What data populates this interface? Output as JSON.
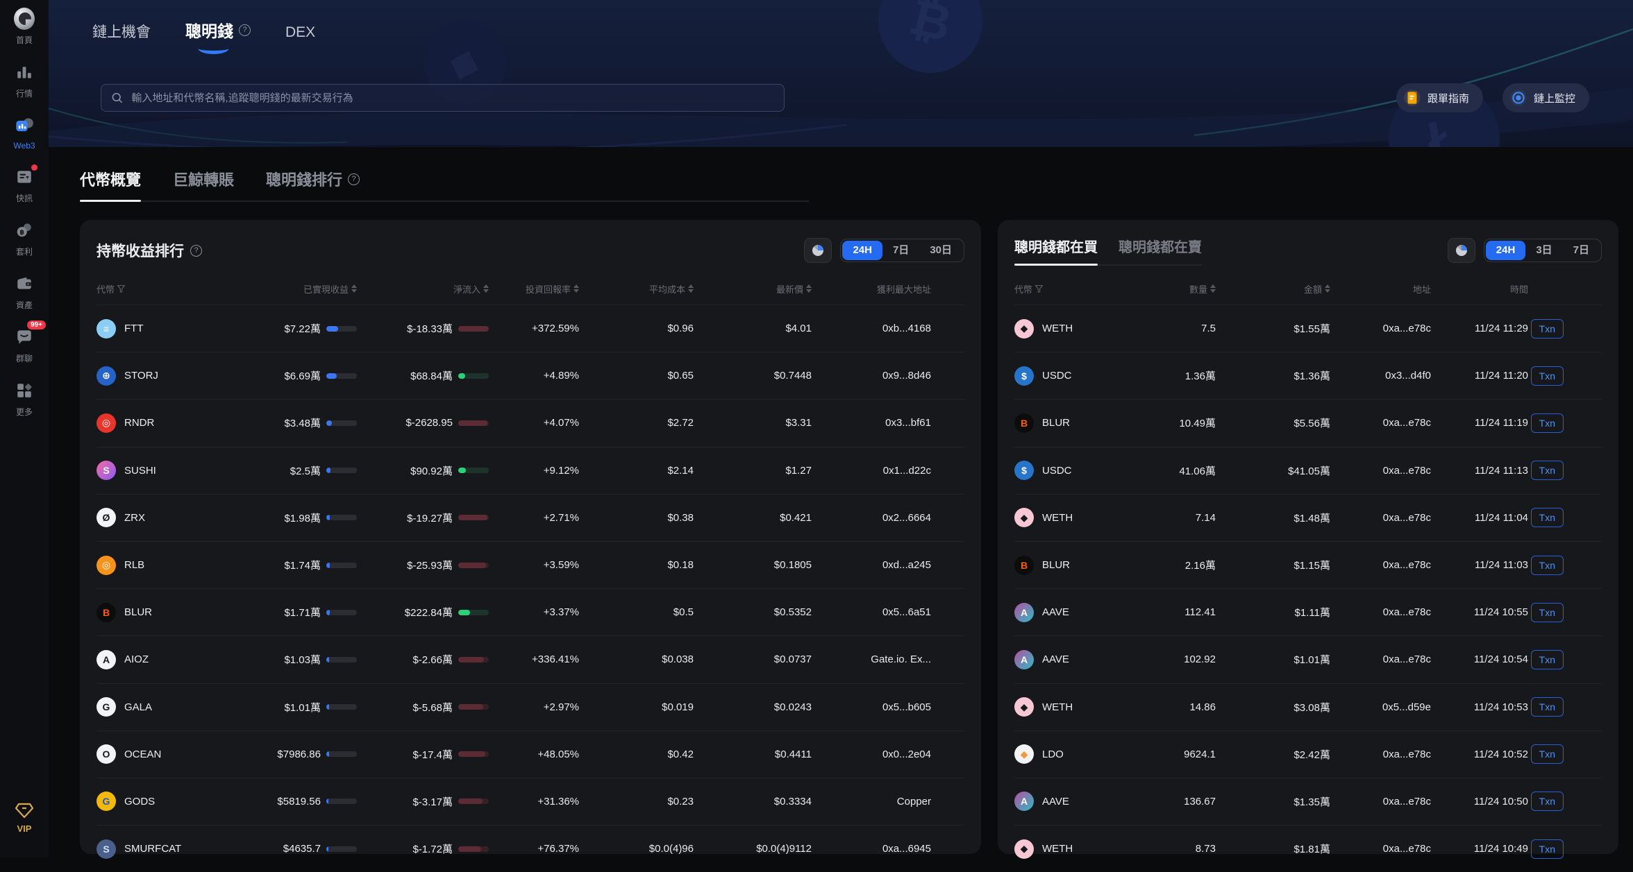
{
  "sidebar": {
    "items": [
      {
        "label": "首頁",
        "icon": "gate-logo"
      },
      {
        "label": "行情",
        "icon": "market-bars"
      },
      {
        "label": "Web3",
        "icon": "web3",
        "active": true
      },
      {
        "label": "快訊",
        "icon": "news",
        "badge_dot": true
      },
      {
        "label": "套利",
        "icon": "arbitrage"
      },
      {
        "label": "資產",
        "icon": "wallet"
      },
      {
        "label": "群聊",
        "icon": "chat",
        "badge": "99+"
      },
      {
        "label": "更多",
        "icon": "more-grid"
      }
    ],
    "vip_label": "VIP"
  },
  "topnav": {
    "tabs": [
      {
        "label": "鏈上機會",
        "active": false
      },
      {
        "label": "聰明錢",
        "active": true,
        "help": true
      },
      {
        "label": "DEX",
        "active": false
      }
    ]
  },
  "search": {
    "placeholder": "輸入地址和代幣名稱,追蹤聰明錢的最新交易行為"
  },
  "header_actions": [
    {
      "label": "跟單指南",
      "icon": "guide-doc"
    },
    {
      "label": "鏈上監控",
      "icon": "chain-monitor"
    }
  ],
  "section_tabs": [
    {
      "label": "代幣概覽",
      "active": true
    },
    {
      "label": "巨鯨轉賬",
      "active": false
    },
    {
      "label": "聰明錢排行",
      "active": false,
      "help": true
    }
  ],
  "left_panel": {
    "title": "持幣收益排行",
    "filters": [
      "24H",
      "7日",
      "30日"
    ],
    "active_filter": "24H",
    "columns": [
      {
        "label": "代幣",
        "filter": true
      },
      {
        "label": "已實現收益",
        "sort": true
      },
      {
        "label": "淨流入",
        "sort": true
      },
      {
        "label": "投資回報率",
        "sort": true
      },
      {
        "label": "平均成本",
        "sort": true
      },
      {
        "label": "最新價",
        "sort": true
      },
      {
        "label": "獲利最大地址"
      }
    ],
    "rows": [
      {
        "symbol": "FTT",
        "icon": {
          "bg": "#8BCDF4",
          "fg": "#ffffff",
          "glyph": "≡"
        },
        "realized": "$7.22萬",
        "realized_pct": 38,
        "netflow": "$-18.33萬",
        "netflow_pct": 100,
        "netflow_dir": "down",
        "roi": "+372.59%",
        "avg_cost": "$0.96",
        "price": "$4.01",
        "addr": "0xb...4168"
      },
      {
        "symbol": "STORJ",
        "icon": {
          "bg": "#2563C9",
          "fg": "#ffffff",
          "glyph": "⊕"
        },
        "realized": "$6.69萬",
        "realized_pct": 33,
        "netflow": "$68.84萬",
        "netflow_pct": 22,
        "netflow_dir": "up",
        "roi": "+4.89%",
        "avg_cost": "$0.65",
        "price": "$0.7448",
        "addr": "0x9...8d46"
      },
      {
        "symbol": "RNDR",
        "icon": {
          "bg": "#E8352C",
          "fg": "#ffffff",
          "glyph": "◎"
        },
        "realized": "$3.48萬",
        "realized_pct": 18,
        "netflow": "$-2628.95",
        "netflow_pct": 95,
        "netflow_dir": "down",
        "roi": "+4.07%",
        "avg_cost": "$2.72",
        "price": "$3.31",
        "addr": "0x3...bf61"
      },
      {
        "symbol": "SUSHI",
        "icon": {
          "bg": "linear-gradient(135deg,#f46ba2,#8a5cf5)",
          "fg": "#ffffff",
          "glyph": "S"
        },
        "realized": "$2.5萬",
        "realized_pct": 14,
        "netflow": "$90.92萬",
        "netflow_pct": 24,
        "netflow_dir": "up",
        "roi": "+9.12%",
        "avg_cost": "$2.14",
        "price": "$1.27",
        "addr": "0x1...d22c"
      },
      {
        "symbol": "ZRX",
        "icon": {
          "bg": "#f2f3f5",
          "fg": "#17181b",
          "glyph": "Ø"
        },
        "realized": "$1.98萬",
        "realized_pct": 12,
        "netflow": "$-19.27萬",
        "netflow_pct": 95,
        "netflow_dir": "down",
        "roi": "+2.71%",
        "avg_cost": "$0.38",
        "price": "$0.421",
        "addr": "0x2...6664"
      },
      {
        "symbol": "RLB",
        "icon": {
          "bg": "#F7931A",
          "fg": "#ffffff",
          "glyph": "◎"
        },
        "realized": "$1.74萬",
        "realized_pct": 11,
        "netflow": "$-25.93萬",
        "netflow_pct": 90,
        "netflow_dir": "down",
        "roi": "+3.59%",
        "avg_cost": "$0.18",
        "price": "$0.1805",
        "addr": "0xd...a245"
      },
      {
        "symbol": "BLUR",
        "icon": {
          "bg": "#0c0c0c",
          "fg": "#FF5C00",
          "glyph": "B"
        },
        "realized": "$1.71萬",
        "realized_pct": 11,
        "netflow": "$222.84萬",
        "netflow_pct": 38,
        "netflow_dir": "up",
        "roi": "+3.37%",
        "avg_cost": "$0.5",
        "price": "$0.5352",
        "addr": "0x5...6a51"
      },
      {
        "symbol": "AIOZ",
        "icon": {
          "bg": "#f2f3f5",
          "fg": "#17181b",
          "glyph": "A"
        },
        "realized": "$1.03萬",
        "realized_pct": 9,
        "netflow": "$-2.66萬",
        "netflow_pct": 85,
        "netflow_dir": "down",
        "roi": "+336.41%",
        "avg_cost": "$0.038",
        "price": "$0.0737",
        "addr": "Gate.io. Ex..."
      },
      {
        "symbol": "GALA",
        "icon": {
          "bg": "#f2f3f5",
          "fg": "#17181b",
          "glyph": "G"
        },
        "realized": "$1.01萬",
        "realized_pct": 9,
        "netflow": "$-5.68萬",
        "netflow_pct": 82,
        "netflow_dir": "down",
        "roi": "+2.97%",
        "avg_cost": "$0.019",
        "price": "$0.0243",
        "addr": "0x5...b605"
      },
      {
        "symbol": "OCEAN",
        "icon": {
          "bg": "#f2f3f5",
          "fg": "#17181b",
          "glyph": "O"
        },
        "realized": "$7986.86",
        "realized_pct": 8,
        "netflow": "$-17.4萬",
        "netflow_pct": 88,
        "netflow_dir": "down",
        "roi": "+48.05%",
        "avg_cost": "$0.42",
        "price": "$0.4411",
        "addr": "0x0...2e04"
      },
      {
        "symbol": "GODS",
        "icon": {
          "bg": "#F0B90B",
          "fg": "#2456c9",
          "glyph": "G"
        },
        "realized": "$5819.56",
        "realized_pct": 7,
        "netflow": "$-3.17萬",
        "netflow_pct": 80,
        "netflow_dir": "down",
        "roi": "+31.36%",
        "avg_cost": "$0.23",
        "price": "$0.3334",
        "addr": "Copper"
      },
      {
        "symbol": "SMURFCAT",
        "icon": {
          "bg": "#49608a",
          "fg": "#cfe3ff",
          "glyph": "S"
        },
        "realized": "$4635.7",
        "realized_pct": 7,
        "netflow": "$-1.72萬",
        "netflow_pct": 75,
        "netflow_dir": "down",
        "roi": "+76.37%",
        "avg_cost": "$0.0(4)96",
        "price": "$0.0(4)9112",
        "addr": "0xa...6945"
      }
    ]
  },
  "right_panel": {
    "tabs": [
      {
        "label": "聰明錢都在買",
        "active": true
      },
      {
        "label": "聰明錢都在賣",
        "active": false
      }
    ],
    "filters": [
      "24H",
      "3日",
      "7日"
    ],
    "active_filter": "24H",
    "txn_label": "Txn",
    "columns": [
      {
        "label": "代幣",
        "filter": true
      },
      {
        "label": "數量",
        "sort": true
      },
      {
        "label": "金額",
        "sort": true
      },
      {
        "label": "地址"
      },
      {
        "label": "時間"
      },
      {
        "label": ""
      }
    ],
    "rows": [
      {
        "symbol": "WETH",
        "icon": {
          "bg": "#F7C7D4",
          "fg": "#17181b",
          "glyph": "◆"
        },
        "qty": "7.5",
        "amount": "$1.55萬",
        "addr": "0xa...e78c",
        "time": "11/24 11:29"
      },
      {
        "symbol": "USDC",
        "icon": {
          "bg": "#2775CA",
          "fg": "#ffffff",
          "glyph": "$"
        },
        "qty": "1.36萬",
        "amount": "$1.36萬",
        "addr": "0x3...d4f0",
        "time": "11/24 11:20"
      },
      {
        "symbol": "BLUR",
        "icon": {
          "bg": "#0c0c0c",
          "fg": "#FF5C00",
          "glyph": "B"
        },
        "qty": "10.49萬",
        "amount": "$5.56萬",
        "addr": "0xa...e78c",
        "time": "11/24 11:19"
      },
      {
        "symbol": "USDC",
        "icon": {
          "bg": "#2775CA",
          "fg": "#ffffff",
          "glyph": "$"
        },
        "qty": "41.06萬",
        "amount": "$41.05萬",
        "addr": "0xa...e78c",
        "time": "11/24 11:13"
      },
      {
        "symbol": "WETH",
        "icon": {
          "bg": "#F7C7D4",
          "fg": "#17181b",
          "glyph": "◆"
        },
        "qty": "7.14",
        "amount": "$1.48萬",
        "addr": "0xa...e78c",
        "time": "11/24 11:04"
      },
      {
        "symbol": "BLUR",
        "icon": {
          "bg": "#0c0c0c",
          "fg": "#FF5C00",
          "glyph": "B"
        },
        "qty": "2.16萬",
        "amount": "$1.15萬",
        "addr": "0xa...e78c",
        "time": "11/24 11:03"
      },
      {
        "symbol": "AAVE",
        "icon": {
          "bg": "linear-gradient(135deg,#B6509E,#2EBAC6)",
          "fg": "#ffffff",
          "glyph": "A"
        },
        "qty": "112.41",
        "amount": "$1.11萬",
        "addr": "0xa...e78c",
        "time": "11/24 10:55"
      },
      {
        "symbol": "AAVE",
        "icon": {
          "bg": "linear-gradient(135deg,#B6509E,#2EBAC6)",
          "fg": "#ffffff",
          "glyph": "A"
        },
        "qty": "102.92",
        "amount": "$1.01萬",
        "addr": "0xa...e78c",
        "time": "11/24 10:54"
      },
      {
        "symbol": "WETH",
        "icon": {
          "bg": "#F7C7D4",
          "fg": "#17181b",
          "glyph": "◆"
        },
        "qty": "14.86",
        "amount": "$3.08萬",
        "addr": "0x5...d59e",
        "time": "11/24 10:53"
      },
      {
        "symbol": "LDO",
        "icon": {
          "bg": "#f2f3f5",
          "fg": "#F09A3E",
          "glyph": "◆"
        },
        "qty": "9624.1",
        "amount": "$2.42萬",
        "addr": "0xa...e78c",
        "time": "11/24 10:52"
      },
      {
        "symbol": "AAVE",
        "icon": {
          "bg": "linear-gradient(135deg,#B6509E,#2EBAC6)",
          "fg": "#ffffff",
          "glyph": "A"
        },
        "qty": "136.67",
        "amount": "$1.35萬",
        "addr": "0xa...e78c",
        "time": "11/24 10:50"
      },
      {
        "symbol": "WETH",
        "icon": {
          "bg": "#F7C7D4",
          "fg": "#17181b",
          "glyph": "◆"
        },
        "qty": "8.73",
        "amount": "$1.81萬",
        "addr": "0xa...e78c",
        "time": "11/24 10:49"
      }
    ]
  }
}
